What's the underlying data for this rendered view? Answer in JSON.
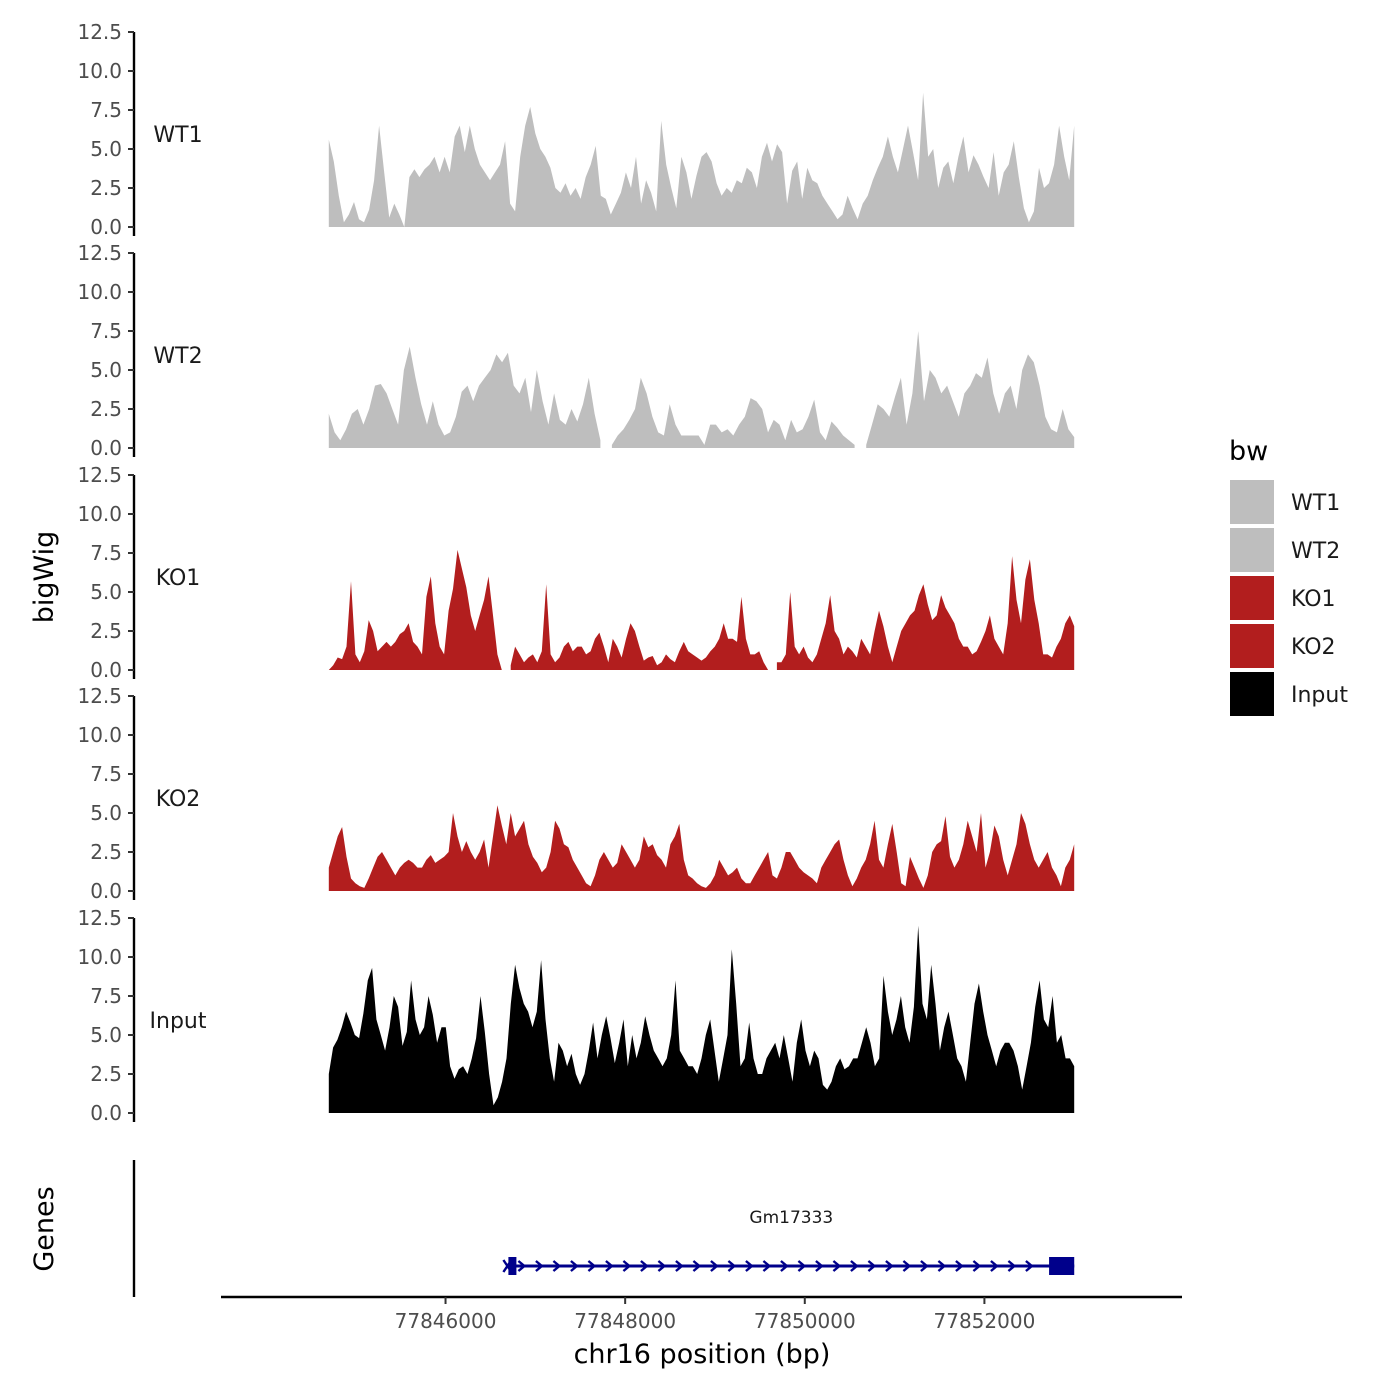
{
  "chart_data": {
    "type": "area",
    "chromosome": "chr16",
    "xlabel": "chr16 position (bp)",
    "ylabel": "bigWig",
    "xlim": [
      77843500,
      77854200
    ],
    "ylim": [
      0,
      12.5
    ],
    "x_ticks": [
      77846000,
      77848000,
      77850000,
      77852000
    ],
    "x_tick_labels": [
      "77846000",
      "77848000",
      "77850000",
      "77852000"
    ],
    "y_ticks": [
      0,
      2.5,
      5,
      7.5,
      10,
      12.5
    ],
    "y_tick_labels": [
      "0.0",
      "2.5",
      "5.0",
      "7.5",
      "10.0",
      "12.5"
    ],
    "signal_start": 77844700,
    "signal_end": 77853000,
    "legend": {
      "title": "bw",
      "position": "right",
      "entries": [
        {
          "label": "WT1",
          "color": "#bebebe"
        },
        {
          "label": "WT2",
          "color": "#bebebe"
        },
        {
          "label": "KO1",
          "color": "#b21e1e"
        },
        {
          "label": "KO2",
          "color": "#b21e1e"
        },
        {
          "label": "Input",
          "color": "#000000"
        }
      ]
    },
    "series": [
      {
        "name": "WT1",
        "color": "#bebebe",
        "values": [
          5.6,
          4.2,
          2.0,
          0.3,
          0.8,
          1.6,
          0.5,
          0.3,
          1.1,
          3.0,
          6.5,
          3.5,
          0.6,
          1.5,
          0.8,
          0.0,
          3.2,
          3.7,
          3.2,
          3.7,
          4.0,
          4.5,
          3.5,
          4.5,
          3.5,
          5.8,
          6.5,
          4.8,
          6.5,
          5.0,
          4.0,
          3.5,
          3.0,
          3.5,
          4.0,
          5.5,
          1.5,
          1.0,
          4.5,
          6.5,
          7.7,
          6.0,
          5.0,
          4.5,
          3.8,
          2.5,
          2.2,
          2.8,
          2.0,
          2.5,
          1.8,
          3.2,
          4.0,
          5.2,
          2.0,
          1.8,
          0.8,
          1.5,
          2.2,
          3.5,
          2.5,
          4.5,
          1.5,
          3.0,
          2.2,
          1.0,
          6.8,
          4.0,
          2.5,
          1.2,
          4.5,
          3.5,
          1.8,
          3.3,
          4.5,
          4.8,
          4.2,
          2.8,
          2.0,
          2.5,
          2.2,
          3.0,
          2.8,
          3.8,
          3.5,
          2.5,
          4.5,
          5.4,
          4.2,
          5.3,
          4.8,
          1.5,
          3.6,
          4.2,
          1.8,
          3.8,
          3.0,
          2.8,
          2.0,
          1.5,
          1.0,
          0.5,
          0.8,
          2.0,
          1.2,
          0.5,
          1.5,
          2.0,
          3.0,
          3.8,
          4.5,
          5.8,
          4.5,
          3.5,
          5.0,
          6.5,
          4.8,
          3.0,
          8.6,
          4.5,
          5.0,
          2.5,
          3.8,
          4.2,
          2.8,
          4.5,
          5.8,
          3.5,
          4.6,
          4.0,
          3.2,
          2.5,
          4.8,
          2.0,
          3.5,
          4.0,
          5.5,
          3.2,
          1.2,
          0.3,
          1.0,
          3.8,
          2.5,
          2.8,
          4.0,
          6.5,
          4.5,
          3.0,
          6.5
        ]
      },
      {
        "name": "WT2",
        "color": "#bebebe",
        "values": [
          2.2,
          1.0,
          0.5,
          1.2,
          2.2,
          2.5,
          1.5,
          2.5,
          4.0,
          4.1,
          3.5,
          2.5,
          1.5,
          5.0,
          6.5,
          4.5,
          2.8,
          1.5,
          3.0,
          1.5,
          0.8,
          1.0,
          2.0,
          3.6,
          4.0,
          3.0,
          4.0,
          4.5,
          5.0,
          6.0,
          5.5,
          6.1,
          4.0,
          3.5,
          4.5,
          2.3,
          5.0,
          3.0,
          1.5,
          3.5,
          1.8,
          1.5,
          2.5,
          1.7,
          2.8,
          4.5,
          2.2,
          0.5,
          null,
          0.2,
          0.8,
          1.2,
          1.8,
          2.5,
          4.5,
          3.5,
          2.0,
          1.0,
          0.8,
          2.8,
          1.5,
          0.8,
          0.8,
          0.8,
          0.8,
          0.2,
          1.5,
          1.5,
          1.0,
          1.2,
          0.8,
          1.5,
          2.0,
          3.2,
          3.0,
          2.5,
          1.0,
          1.8,
          1.5,
          0.5,
          1.8,
          1.0,
          1.2,
          2.0,
          3.1,
          1.0,
          0.5,
          1.7,
          1.3,
          0.8,
          0.5,
          0.2,
          null,
          0.2,
          1.5,
          2.8,
          2.5,
          2.0,
          3.3,
          4.5,
          1.5,
          3.5,
          7.5,
          3.0,
          5.0,
          4.5,
          3.5,
          4.0,
          3.0,
          2.0,
          3.5,
          4.0,
          4.8,
          4.5,
          5.8,
          3.5,
          2.2,
          3.5,
          4.0,
          2.5,
          5.0,
          6.0,
          5.5,
          4.0,
          2.0,
          1.2,
          1.0,
          2.5,
          1.2,
          0.7
        ]
      },
      {
        "name": "KO1",
        "color": "#b21e1e",
        "values": [
          0.0,
          0.3,
          0.8,
          0.7,
          1.5,
          5.7,
          1.0,
          0.5,
          1.2,
          3.2,
          2.5,
          1.2,
          1.5,
          1.8,
          1.5,
          1.8,
          2.3,
          2.5,
          3.0,
          1.8,
          1.5,
          1.0,
          4.7,
          6.0,
          3.0,
          1.5,
          1.0,
          3.8,
          5.2,
          7.7,
          6.5,
          5.3,
          3.5,
          2.5,
          3.5,
          4.5,
          6.0,
          3.5,
          1.0,
          0.0,
          null,
          0.3,
          1.5,
          1.0,
          0.5,
          0.8,
          1.0,
          0.5,
          1.2,
          5.5,
          1.0,
          0.5,
          0.8,
          1.5,
          1.8,
          1.2,
          1.5,
          1.5,
          1.0,
          1.2,
          2.0,
          2.4,
          1.5,
          0.5,
          2.0,
          1.5,
          0.8,
          2.0,
          3.0,
          2.5,
          1.5,
          0.6,
          0.8,
          0.9,
          0.3,
          0.5,
          1.0,
          0.7,
          0.5,
          1.2,
          1.8,
          1.2,
          1.0,
          0.8,
          0.6,
          0.8,
          1.2,
          1.5,
          2.0,
          3.0,
          2.0,
          2.0,
          1.8,
          4.7,
          2.0,
          1.0,
          1.0,
          1.2,
          0.5,
          0.0,
          null,
          0.5,
          0.5,
          1.0,
          5.0,
          1.5,
          1.0,
          1.5,
          0.8,
          0.5,
          1.0,
          2.0,
          3.0,
          4.8,
          2.5,
          2.0,
          1.0,
          1.5,
          1.2,
          0.8,
          2.0,
          1.5,
          1.0,
          2.5,
          3.8,
          2.8,
          1.5,
          0.5,
          1.5,
          2.5,
          3.0,
          3.5,
          3.8,
          4.8,
          5.5,
          4.2,
          3.2,
          3.5,
          4.8,
          4.0,
          3.5,
          3.0,
          2.0,
          1.5,
          1.5,
          1.0,
          1.2,
          1.8,
          2.5,
          3.5,
          2.0,
          1.5,
          1.0,
          3.0,
          7.3,
          4.5,
          3.0,
          5.8,
          7.1,
          4.5,
          3.0,
          1.0,
          1.0,
          0.8,
          1.5,
          2.0,
          3.0,
          3.5,
          2.8
        ]
      },
      {
        "name": "KO2",
        "color": "#b21e1e",
        "values": [
          1.5,
          2.5,
          3.5,
          4.1,
          2.2,
          0.8,
          0.5,
          0.3,
          0.2,
          0.8,
          1.5,
          2.2,
          2.5,
          2.0,
          1.5,
          1.0,
          1.5,
          1.8,
          2.0,
          1.8,
          1.5,
          1.5,
          2.0,
          2.3,
          1.8,
          2.0,
          2.2,
          2.5,
          5.0,
          3.5,
          2.5,
          3.2,
          2.5,
          2.0,
          2.5,
          3.3,
          1.5,
          3.5,
          5.5,
          4.2,
          3.0,
          5.0,
          3.5,
          4.0,
          4.5,
          3.0,
          2.2,
          1.8,
          1.2,
          1.5,
          2.5,
          4.5,
          4.0,
          3.0,
          2.8,
          2.0,
          1.5,
          1.0,
          0.5,
          0.3,
          1.0,
          2.0,
          2.5,
          2.0,
          1.5,
          1.8,
          3.0,
          2.5,
          2.0,
          1.5,
          2.0,
          3.5,
          2.8,
          3.0,
          2.3,
          2.0,
          1.5,
          3.0,
          3.5,
          4.3,
          2.0,
          1.0,
          0.8,
          0.5,
          0.3,
          0.2,
          0.5,
          1.0,
          2.0,
          1.5,
          1.0,
          1.2,
          1.5,
          0.8,
          0.5,
          0.5,
          1.0,
          1.5,
          2.0,
          2.5,
          1.0,
          0.8,
          1.5,
          2.5,
          2.5,
          2.0,
          1.5,
          1.2,
          1.0,
          0.8,
          0.5,
          1.5,
          2.0,
          2.5,
          3.0,
          3.3,
          2.0,
          1.0,
          0.3,
          0.8,
          1.5,
          2.0,
          3.0,
          4.5,
          2.0,
          1.5,
          3.0,
          4.3,
          2.5,
          0.5,
          0.3,
          2.2,
          1.5,
          0.8,
          0.2,
          1.0,
          2.5,
          3.0,
          3.2,
          4.8,
          2.2,
          1.5,
          2.0,
          3.0,
          4.5,
          3.5,
          2.5,
          5.0,
          1.5,
          2.5,
          4.2,
          3.5,
          2.0,
          1.0,
          2.0,
          3.0,
          5.0,
          4.3,
          3.0,
          2.0,
          1.5,
          2.0,
          2.5,
          1.5,
          1.0,
          0.3,
          1.5,
          2.0,
          3.0
        ]
      },
      {
        "name": "Input",
        "color": "#000000",
        "values": [
          2.5,
          4.2,
          4.7,
          5.5,
          6.5,
          5.8,
          5.0,
          4.8,
          6.4,
          8.5,
          9.3,
          6.0,
          5.0,
          4.0,
          5.5,
          7.5,
          6.8,
          4.3,
          5.2,
          8.5,
          6.0,
          5.0,
          5.5,
          7.5,
          6.3,
          4.5,
          5.5,
          5.5,
          3.0,
          2.2,
          2.8,
          3.0,
          2.5,
          3.5,
          4.8,
          7.5,
          5.2,
          2.5,
          0.5,
          1.0,
          2.0,
          3.5,
          7.0,
          9.5,
          8.0,
          7.0,
          6.5,
          5.5,
          6.5,
          9.8,
          6.0,
          3.5,
          2.0,
          4.5,
          4.0,
          3.0,
          3.8,
          2.5,
          1.8,
          2.5,
          4.0,
          5.8,
          3.5,
          5.0,
          6.2,
          4.8,
          3.2,
          4.5,
          6.0,
          3.0,
          5.0,
          3.5,
          4.5,
          6.2,
          5.0,
          4.0,
          3.5,
          3.0,
          3.5,
          5.0,
          8.5,
          4.0,
          3.5,
          3.0,
          3.0,
          2.5,
          3.5,
          5.0,
          6.0,
          4.0,
          2.0,
          3.5,
          5.0,
          10.5,
          7.0,
          3.0,
          3.5,
          5.8,
          3.5,
          2.5,
          2.5,
          3.5,
          4.0,
          4.5,
          3.5,
          5.0,
          3.5,
          2.0,
          4.5,
          6.0,
          4.0,
          3.0,
          4.0,
          3.5,
          1.8,
          1.5,
          2.0,
          3.0,
          3.5,
          2.8,
          3.0,
          3.5,
          3.5,
          4.5,
          5.5,
          4.5,
          3.0,
          3.5,
          8.8,
          6.5,
          5.0,
          6.0,
          7.5,
          5.5,
          4.5,
          6.8,
          12.0,
          7.0,
          6.0,
          9.5,
          7.0,
          4.0,
          5.5,
          6.5,
          5.0,
          3.5,
          3.0,
          2.0,
          4.5,
          7.0,
          8.3,
          6.5,
          5.0,
          4.0,
          3.0,
          4.0,
          4.5,
          4.5,
          4.0,
          3.0,
          1.5,
          3.0,
          4.5,
          6.8,
          8.5,
          6.0,
          5.5,
          7.5,
          4.5,
          5.0,
          3.5,
          3.5,
          3.0
        ]
      }
    ],
    "genes": [
      {
        "name": "Gm17333",
        "start": 77846700,
        "end": 77853000,
        "strand": "+",
        "exons": [
          [
            77846700,
            77846770
          ],
          [
            77852720,
            77853000
          ]
        ],
        "color": "#00008b"
      }
    ],
    "panels": [
      "WT1",
      "WT2",
      "KO1",
      "KO2",
      "Input",
      "Genes"
    ],
    "genes_panel_label": "Genes"
  }
}
